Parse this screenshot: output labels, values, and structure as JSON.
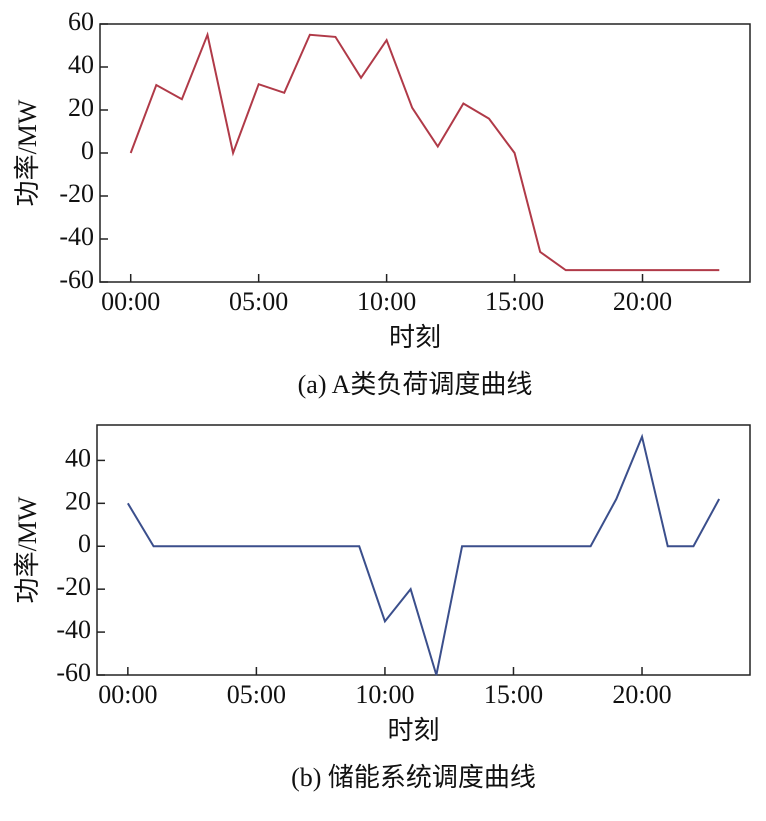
{
  "chart_data": [
    {
      "type": "line",
      "caption": "(a) A类负荷调度曲线",
      "x_label": "时刻",
      "y_label": "功率/MW",
      "x": [
        0,
        1,
        2,
        3,
        4,
        5,
        6,
        7,
        8,
        9,
        10,
        11,
        12,
        13,
        14,
        15,
        16,
        17,
        18,
        19,
        20,
        21,
        22,
        23
      ],
      "series": [
        {
          "name": "A类负荷",
          "color": "#b03a48",
          "values": [
            0,
            31.6,
            25,
            55,
            0,
            32,
            28,
            55,
            54,
            35,
            52.5,
            21,
            3,
            23,
            16,
            0,
            -46,
            -54.5,
            -54.5,
            -54.5,
            -54.5,
            -54.5,
            -54.5,
            -54.5
          ]
        }
      ],
      "xlim": [
        -1.2,
        24.2
      ],
      "xticks": [
        {
          "value": 0,
          "label": "00:00"
        },
        {
          "value": 5,
          "label": "05:00"
        },
        {
          "value": 10,
          "label": "10:00"
        },
        {
          "value": 15,
          "label": "15:00"
        },
        {
          "value": 20,
          "label": "20:00"
        }
      ],
      "ylim": [
        -60,
        60
      ],
      "yticks": [
        -60,
        -40,
        -20,
        0,
        20,
        40,
        60
      ]
    },
    {
      "type": "line",
      "caption": "(b) 储能系统调度曲线",
      "x_label": "时刻",
      "y_label": "功率/MW",
      "x": [
        0,
        1,
        2,
        3,
        4,
        5,
        6,
        7,
        8,
        9,
        10,
        11,
        12,
        13,
        14,
        15,
        16,
        17,
        18,
        19,
        20,
        21,
        22,
        23
      ],
      "series": [
        {
          "name": "储能系统",
          "color": "#3b4f8c",
          "values": [
            20,
            0,
            0,
            0,
            0,
            0,
            0,
            0,
            0,
            0,
            -35,
            -20,
            -60,
            0,
            0,
            0,
            0,
            0,
            0,
            22,
            51,
            0,
            0,
            22
          ]
        }
      ],
      "xlim": [
        -1.2,
        24.2
      ],
      "xticks": [
        {
          "value": 0,
          "label": "00:00"
        },
        {
          "value": 5,
          "label": "05:00"
        },
        {
          "value": 10,
          "label": "10:00"
        },
        {
          "value": 15,
          "label": "15:00"
        },
        {
          "value": 20,
          "label": "20:00"
        }
      ],
      "ylim": [
        -60,
        56.5
      ],
      "yticks": [
        -60,
        -40,
        -20,
        0,
        20,
        40
      ]
    }
  ]
}
